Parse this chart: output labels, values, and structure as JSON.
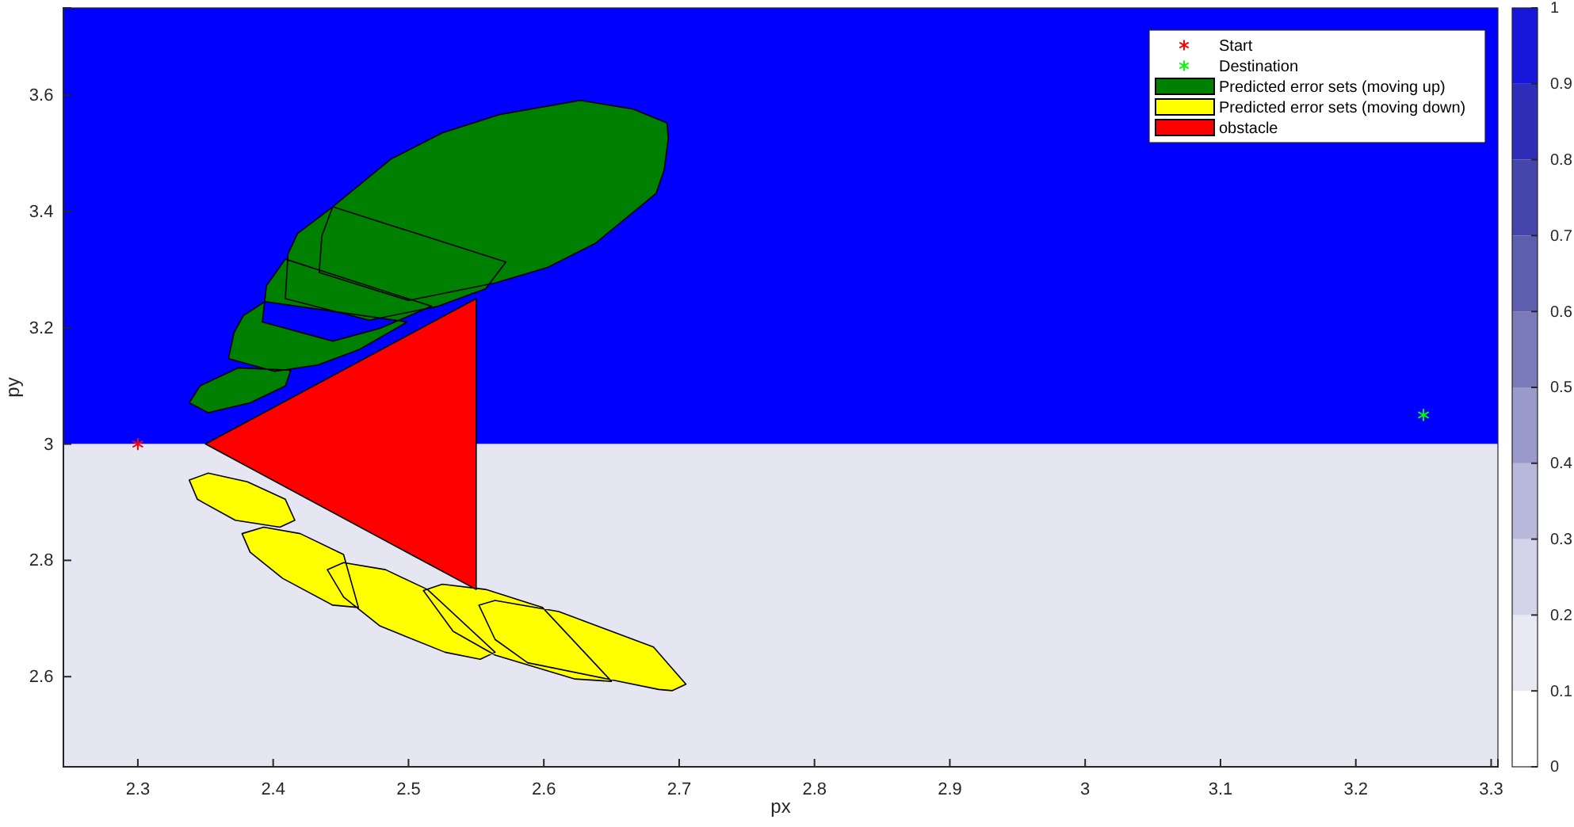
{
  "chart_data": {
    "type": "scatter",
    "xlabel": "px",
    "ylabel": "py",
    "xlim": [
      2.245,
      3.305
    ],
    "ylim": [
      2.445,
      3.75
    ],
    "xticks": [
      2.3,
      2.4,
      2.5,
      2.6,
      2.7,
      2.8,
      2.9,
      3,
      3.1,
      3.2,
      3.3
    ],
    "yticks": [
      2.6,
      2.8,
      3,
      3.2,
      3.4,
      3.6
    ],
    "legend": "top right",
    "clim": [
      0,
      1
    ],
    "cticks": [
      0,
      0.1,
      0.2,
      0.3,
      0.4,
      0.5,
      0.6,
      0.7,
      0.8,
      0.9,
      1
    ],
    "bands": [
      {
        "axis": "y",
        "from": 3,
        "to": 3.75,
        "color": "#0000ff"
      },
      {
        "axis": "y",
        "from": 2.445,
        "to": 3,
        "color": "#e6e6f2"
      }
    ],
    "series": [
      {
        "name": "Start",
        "color": "#ff0000",
        "marker": "cross",
        "x": [
          2.3
        ],
        "values": [
          3
        ]
      },
      {
        "name": "Destination",
        "color": "#00ff00",
        "marker": "cross",
        "x": [
          3.25
        ],
        "values": [
          3.05
        ]
      },
      {
        "type": "area",
        "name": "Predicted error sets (moving up)",
        "color": "#008000",
        "x": [
          2.338,
          2.352,
          2.383,
          2.409,
          2.413,
          2.374,
          2.346,
          null,
          2.367,
          2.401,
          2.433,
          2.464,
          2.499,
          2.394,
          2.378,
          2.371,
          null,
          2.392,
          2.395,
          2.409,
          2.517,
          2.479,
          2.444,
          null,
          2.409,
          2.411,
          2.418,
          2.444,
          2.572,
          2.557,
          2.522,
          2.471,
          null,
          2.434,
          2.436,
          2.444,
          2.487,
          2.525,
          2.568,
          2.627,
          2.666,
          2.691,
          2.692,
          2.689,
          2.683,
          2.638,
          2.603,
          2.564,
          2.5
        ],
        "values": [
          3.071,
          3.054,
          3.071,
          3.1,
          3.127,
          3.131,
          3.1,
          null,
          3.147,
          3.125,
          3.136,
          3.163,
          3.21,
          3.245,
          3.221,
          3.191,
          null,
          3.21,
          3.272,
          3.318,
          3.237,
          3.199,
          3.177,
          null,
          3.25,
          3.327,
          3.362,
          3.408,
          3.313,
          3.267,
          3.237,
          3.213,
          null,
          3.295,
          3.358,
          3.408,
          3.49,
          3.535,
          3.567,
          3.591,
          3.576,
          3.552,
          3.526,
          3.472,
          3.431,
          3.345,
          3.304,
          3.277,
          3.247
        ]
      },
      {
        "type": "area",
        "name": "Predicted error sets (moving down)",
        "color": "#ffff00",
        "x": [
          2.338,
          2.352,
          2.381,
          2.409,
          2.416,
          2.405,
          2.372,
          2.344,
          null,
          2.377,
          2.393,
          2.42,
          2.452,
          2.463,
          2.444,
          2.407,
          2.383,
          null,
          2.44,
          2.452,
          2.483,
          2.514,
          2.564,
          2.553,
          2.527,
          2.479,
          2.452,
          null,
          2.511,
          2.525,
          2.557,
          2.599,
          2.65,
          2.623,
          2.564,
          2.533,
          null,
          2.552,
          2.564,
          2.611,
          2.681,
          2.705,
          2.695,
          2.685,
          2.588,
          2.564
        ],
        "values": [
          2.938,
          2.95,
          2.935,
          2.905,
          2.869,
          2.857,
          2.869,
          2.905,
          null,
          2.846,
          2.857,
          2.846,
          2.81,
          2.719,
          2.723,
          2.769,
          2.814,
          null,
          2.784,
          2.796,
          2.784,
          2.75,
          2.642,
          2.63,
          2.642,
          2.687,
          2.737,
          null,
          2.748,
          2.759,
          2.75,
          2.719,
          2.592,
          2.596,
          2.637,
          2.678,
          null,
          2.723,
          2.731,
          2.712,
          2.651,
          2.587,
          2.576,
          2.578,
          2.624,
          2.664
        ]
      },
      {
        "type": "area",
        "name": "obstacle",
        "color": "#ff0000",
        "x": [
          2.35,
          2.55,
          2.55
        ],
        "values": [
          3,
          3.25,
          2.75
        ]
      }
    ]
  }
}
